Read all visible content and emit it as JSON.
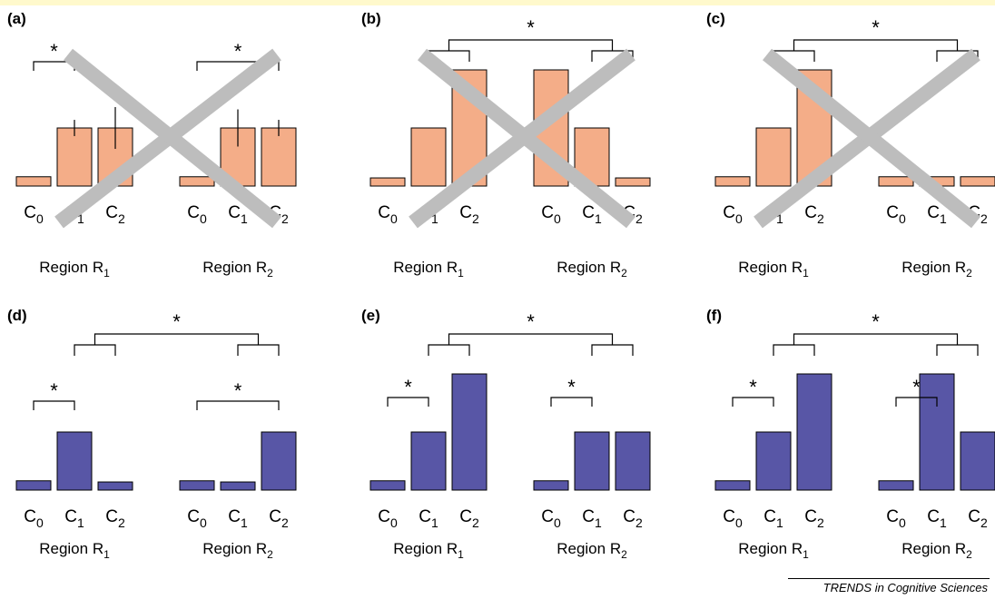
{
  "colors": {
    "top_band": "#fff9cc",
    "salmon": "#f4ad88",
    "blue": "#5856a6",
    "cross": "#bdbdbd",
    "ink": "#000000"
  },
  "footer": {
    "text": "TRENDS in Cognitive Sciences"
  },
  "chart_data": [
    {
      "panel": "(a)",
      "type": "bar",
      "crossed_out": true,
      "color": "salmon",
      "groups": [
        {
          "label_base": "Region R",
          "label_sub": "1",
          "values": [
            0.08,
            0.5,
            0.5
          ],
          "error": [
            0,
            0.14,
            0.36
          ]
        },
        {
          "label_base": "Region R",
          "label_sub": "2",
          "values": [
            0.08,
            0.5,
            0.5
          ],
          "error": [
            0,
            0.32,
            0.14
          ]
        }
      ],
      "categories": [
        "C0",
        "C1",
        "C2"
      ],
      "significance": [
        "R1: C0 vs C1 (*)",
        "R2: C0 vs C2 (*)"
      ]
    },
    {
      "panel": "(b)",
      "type": "bar",
      "crossed_out": true,
      "color": "salmon",
      "groups": [
        {
          "label_base": "Region R",
          "label_sub": "1",
          "values": [
            0.07,
            0.5,
            1.0
          ]
        },
        {
          "label_base": "Region R",
          "label_sub": "2",
          "values": [
            1.0,
            0.5,
            0.07
          ]
        }
      ],
      "categories": [
        "C0",
        "C1",
        "C2"
      ],
      "significance": [
        "R1 (C1 vs C2) vs R2 (C1 vs C2) (*)"
      ]
    },
    {
      "panel": "(c)",
      "type": "bar",
      "crossed_out": true,
      "color": "salmon",
      "groups": [
        {
          "label_base": "Region R",
          "label_sub": "1",
          "values": [
            0.08,
            0.5,
            1.0
          ]
        },
        {
          "label_base": "Region R",
          "label_sub": "2",
          "values": [
            0.08,
            0.08,
            0.08
          ]
        }
      ],
      "categories": [
        "C0",
        "C1",
        "C2"
      ],
      "significance": [
        "R1 (C1 vs C2) vs R2 (C1 vs C2) (*)"
      ]
    },
    {
      "panel": "(d)",
      "type": "bar",
      "crossed_out": false,
      "color": "blue",
      "groups": [
        {
          "label_base": "Region R",
          "label_sub": "1",
          "values": [
            0.08,
            0.5,
            0.07
          ]
        },
        {
          "label_base": "Region R",
          "label_sub": "2",
          "values": [
            0.08,
            0.07,
            0.5
          ]
        }
      ],
      "categories": [
        "C0",
        "C1",
        "C2"
      ],
      "significance": [
        "R1: C0 vs C1 (*)",
        "R2: C0 vs C2 (*)",
        "R1 (C1 vs C2) vs R2 (C1 vs C2) (*)"
      ]
    },
    {
      "panel": "(e)",
      "type": "bar",
      "crossed_out": false,
      "color": "blue",
      "groups": [
        {
          "label_base": "Region R",
          "label_sub": "1",
          "values": [
            0.08,
            0.5,
            1.0
          ]
        },
        {
          "label_base": "Region R",
          "label_sub": "2",
          "values": [
            0.08,
            0.5,
            0.5
          ]
        }
      ],
      "categories": [
        "C0",
        "C1",
        "C2"
      ],
      "significance": [
        "R1: C0 vs C1 (*)",
        "R2: C0 vs C1 (*)",
        "R1 (C1 vs C2) vs R2 (C1 vs C2) (*)"
      ]
    },
    {
      "panel": "(f)",
      "type": "bar",
      "crossed_out": false,
      "color": "blue",
      "groups": [
        {
          "label_base": "Region R",
          "label_sub": "1",
          "values": [
            0.08,
            0.5,
            1.0
          ]
        },
        {
          "label_base": "Region R",
          "label_sub": "2",
          "values": [
            0.08,
            1.0,
            0.5
          ]
        }
      ],
      "categories": [
        "C0",
        "C1",
        "C2"
      ],
      "significance": [
        "R1: C0 vs C1 (*)",
        "R2: C0 vs C1 (*)",
        "R1 (C1 vs C2) vs R2 (C1 vs C2) (*)"
      ]
    }
  ]
}
